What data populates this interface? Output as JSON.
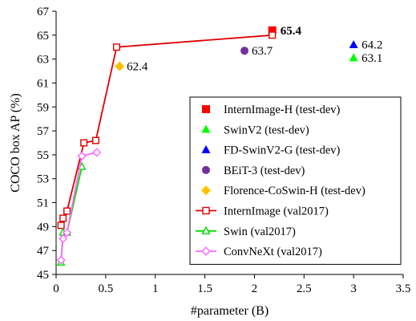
{
  "chart_data": {
    "type": "scatter",
    "xlabel": "#parameter (B)",
    "ylabel": "COCO box AP (%)",
    "xlim": [
      0,
      3.5
    ],
    "ylim": [
      45,
      67
    ],
    "xticks": [
      "0",
      "0.5",
      "1",
      "1.5",
      "2",
      "2.5",
      "3",
      "3.5"
    ],
    "yticks": [
      "45",
      "47",
      "49",
      "51",
      "53",
      "55",
      "57",
      "59",
      "61",
      "63",
      "65",
      "67"
    ],
    "grid": false,
    "legend_position": "bottom-right",
    "series": [
      {
        "name": "InternImage-H (test-dev)",
        "kind": "point",
        "marker": "square",
        "filled": true,
        "color": "#ff0000",
        "points": [
          {
            "x": 2.18,
            "y": 65.4,
            "label": "65.4",
            "label_color": "#ff0000",
            "label_bold": true
          }
        ]
      },
      {
        "name": "SwinV2 (test-dev)",
        "kind": "point",
        "marker": "triangle",
        "filled": true,
        "color": "#00ff00",
        "points": [
          {
            "x": 3.0,
            "y": 63.1,
            "label": "63.1"
          }
        ]
      },
      {
        "name": "FD-SwinV2-G (test-dev)",
        "kind": "point",
        "marker": "triangle",
        "filled": true,
        "color": "#0000ff",
        "points": [
          {
            "x": 3.0,
            "y": 64.2,
            "label": "64.2"
          }
        ]
      },
      {
        "name": "BEiT-3 (test-dev)",
        "kind": "point",
        "marker": "circle",
        "filled": true,
        "color": "#7030a0",
        "points": [
          {
            "x": 1.9,
            "y": 63.7,
            "label": "63.7"
          }
        ]
      },
      {
        "name": "Florence-CoSwin-H (test-dev)",
        "kind": "point",
        "marker": "diamond",
        "filled": true,
        "color": "#ffc000",
        "points": [
          {
            "x": 0.64,
            "y": 62.4,
            "label": "62.4"
          }
        ]
      },
      {
        "name": "InternImage (val2017)",
        "kind": "line",
        "marker": "square",
        "filled": false,
        "color": "#e00000",
        "points": [
          {
            "x": 0.05,
            "y": 49.1
          },
          {
            "x": 0.07,
            "y": 49.7
          },
          {
            "x": 0.11,
            "y": 50.3
          },
          {
            "x": 0.28,
            "y": 56.0
          },
          {
            "x": 0.4,
            "y": 56.2
          },
          {
            "x": 0.61,
            "y": 64.0
          },
          {
            "x": 2.18,
            "y": 65.0
          }
        ]
      },
      {
        "name": "Swin (val2017)",
        "kind": "line",
        "marker": "triangle",
        "filled": false,
        "color": "#00dd00",
        "points": [
          {
            "x": 0.05,
            "y": 46.0
          },
          {
            "x": 0.07,
            "y": 48.5
          },
          {
            "x": 0.11,
            "y": 48.5
          },
          {
            "x": 0.26,
            "y": 54.0
          }
        ]
      },
      {
        "name": "ConvNeXt (val2017)",
        "kind": "line",
        "marker": "diamond",
        "filled": false,
        "color": "#ff66ff",
        "points": [
          {
            "x": 0.05,
            "y": 46.2
          },
          {
            "x": 0.07,
            "y": 48.0
          },
          {
            "x": 0.11,
            "y": 48.5
          },
          {
            "x": 0.26,
            "y": 54.9
          },
          {
            "x": 0.41,
            "y": 55.2
          }
        ]
      }
    ]
  }
}
